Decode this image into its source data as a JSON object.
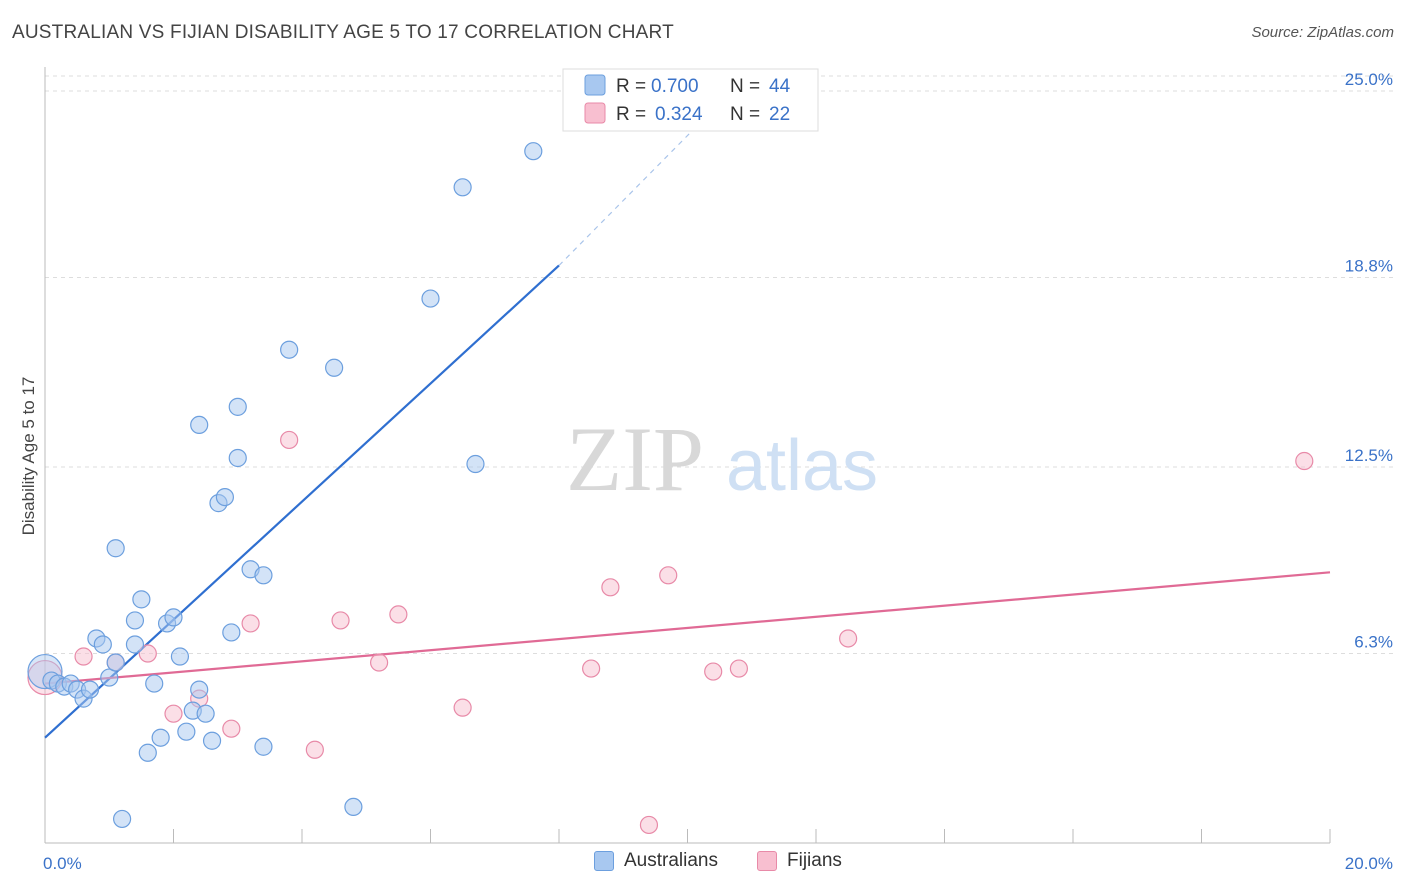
{
  "header": {
    "title": "AUSTRALIAN VS FIJIAN DISABILITY AGE 5 TO 17 CORRELATION CHART",
    "source": "Source: ZipAtlas.com"
  },
  "watermark": {
    "zip": "ZIP",
    "atlas": "atlas"
  },
  "colors": {
    "australians_fill": "#a8c8f0",
    "australians_stroke": "#6c9fde",
    "australians_line": "#2f6fd0",
    "fijians_fill": "#f8bfd0",
    "fijians_stroke": "#e88aa8",
    "fijians_line": "#e06a95",
    "axis_label": "#3a72c8",
    "grid": "#dddddd"
  },
  "legend": {
    "rows": [
      {
        "r_label": "R = ",
        "r_value": "0.700",
        "n_label": "N = ",
        "n_value": "44"
      },
      {
        "r_label": "R = ",
        "r_value": "0.324",
        "n_label": "N = ",
        "n_value": "22"
      }
    ]
  },
  "chart_data": {
    "type": "scatter",
    "ylabel": "Disability Age 5 to 17",
    "xlim": [
      0,
      20
    ],
    "ylim": [
      0,
      25.5
    ],
    "x_tick_labels": [
      {
        "value": 0,
        "label": "0.0%"
      },
      {
        "value": 20,
        "label": "20.0%"
      }
    ],
    "y_tick_labels": [
      {
        "value": 6.3,
        "label": "6.3%"
      },
      {
        "value": 12.5,
        "label": "12.5%"
      },
      {
        "value": 18.8,
        "label": "18.8%"
      },
      {
        "value": 25.0,
        "label": "25.0%"
      }
    ],
    "grid": true,
    "legend_position": "top-center",
    "series": [
      {
        "name": "Australians",
        "points": [
          [
            0.0,
            5.7
          ],
          [
            0.1,
            5.4
          ],
          [
            0.2,
            5.3
          ],
          [
            0.3,
            5.2
          ],
          [
            0.4,
            5.3
          ],
          [
            0.5,
            5.1
          ],
          [
            0.6,
            4.8
          ],
          [
            0.7,
            5.1
          ],
          [
            0.8,
            6.8
          ],
          [
            0.9,
            6.6
          ],
          [
            1.0,
            5.5
          ],
          [
            1.1,
            6.0
          ],
          [
            1.1,
            9.8
          ],
          [
            1.2,
            0.8
          ],
          [
            1.4,
            6.6
          ],
          [
            1.4,
            7.4
          ],
          [
            1.5,
            8.1
          ],
          [
            1.6,
            3.0
          ],
          [
            1.7,
            5.3
          ],
          [
            1.8,
            3.5
          ],
          [
            1.9,
            7.3
          ],
          [
            2.0,
            7.5
          ],
          [
            2.1,
            6.2
          ],
          [
            2.2,
            3.7
          ],
          [
            2.3,
            4.4
          ],
          [
            2.4,
            13.9
          ],
          [
            2.4,
            5.1
          ],
          [
            2.5,
            4.3
          ],
          [
            2.6,
            3.4
          ],
          [
            2.7,
            11.3
          ],
          [
            2.8,
            11.5
          ],
          [
            2.9,
            7.0
          ],
          [
            3.0,
            14.5
          ],
          [
            3.0,
            12.8
          ],
          [
            3.2,
            9.1
          ],
          [
            3.4,
            8.9
          ],
          [
            3.4,
            3.2
          ],
          [
            3.8,
            16.4
          ],
          [
            4.5,
            15.8
          ],
          [
            4.8,
            1.2
          ],
          [
            6.0,
            18.1
          ],
          [
            6.5,
            21.8
          ],
          [
            6.7,
            12.6
          ],
          [
            7.6,
            23.0
          ]
        ],
        "trend_line": {
          "x": [
            0,
            8.0
          ],
          "y": [
            3.5,
            19.2
          ]
        },
        "trend_extension": {
          "x": [
            8.0,
            10.5
          ],
          "y": [
            19.2,
            24.6
          ]
        }
      },
      {
        "name": "Fijians",
        "points": [
          [
            0.0,
            5.5
          ],
          [
            0.6,
            6.2
          ],
          [
            1.1,
            6.0
          ],
          [
            1.6,
            6.3
          ],
          [
            2.0,
            4.3
          ],
          [
            2.4,
            4.8
          ],
          [
            2.9,
            3.8
          ],
          [
            3.2,
            7.3
          ],
          [
            3.8,
            13.4
          ],
          [
            4.2,
            3.1
          ],
          [
            4.6,
            7.4
          ],
          [
            5.2,
            6.0
          ],
          [
            5.5,
            7.6
          ],
          [
            6.5,
            4.5
          ],
          [
            8.5,
            5.8
          ],
          [
            8.8,
            8.5
          ],
          [
            9.4,
            0.6
          ],
          [
            9.7,
            8.9
          ],
          [
            10.4,
            5.7
          ],
          [
            10.8,
            5.8
          ],
          [
            12.5,
            6.8
          ],
          [
            19.6,
            12.7
          ]
        ],
        "trend_line": {
          "x": [
            0,
            20
          ],
          "y": [
            5.3,
            9.0
          ]
        }
      }
    ]
  }
}
